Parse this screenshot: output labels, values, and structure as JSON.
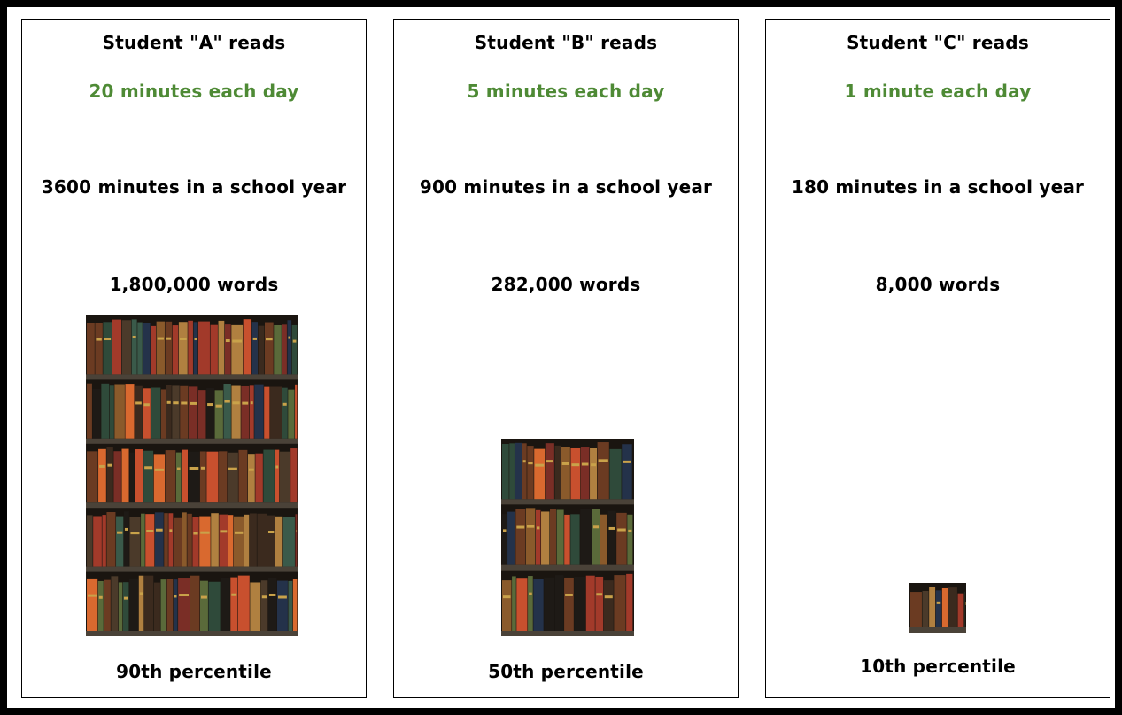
{
  "panels": [
    {
      "student": "Student \"A\" reads",
      "rate": "20 minutes each day",
      "minutes": "3600 minutes in a school year",
      "words": "1,800,000 words",
      "percentile": "90th percentile"
    },
    {
      "student": "Student \"B\" reads",
      "rate": "5 minutes each day",
      "minutes": "900 minutes in a school year",
      "words": "282,000 words",
      "percentile": "50th percentile"
    },
    {
      "student": "Student \"C\" reads",
      "rate": "1 minute each day",
      "minutes": "180 minutes in a school year",
      "words": "8,000 words",
      "percentile": "10th percentile"
    }
  ]
}
